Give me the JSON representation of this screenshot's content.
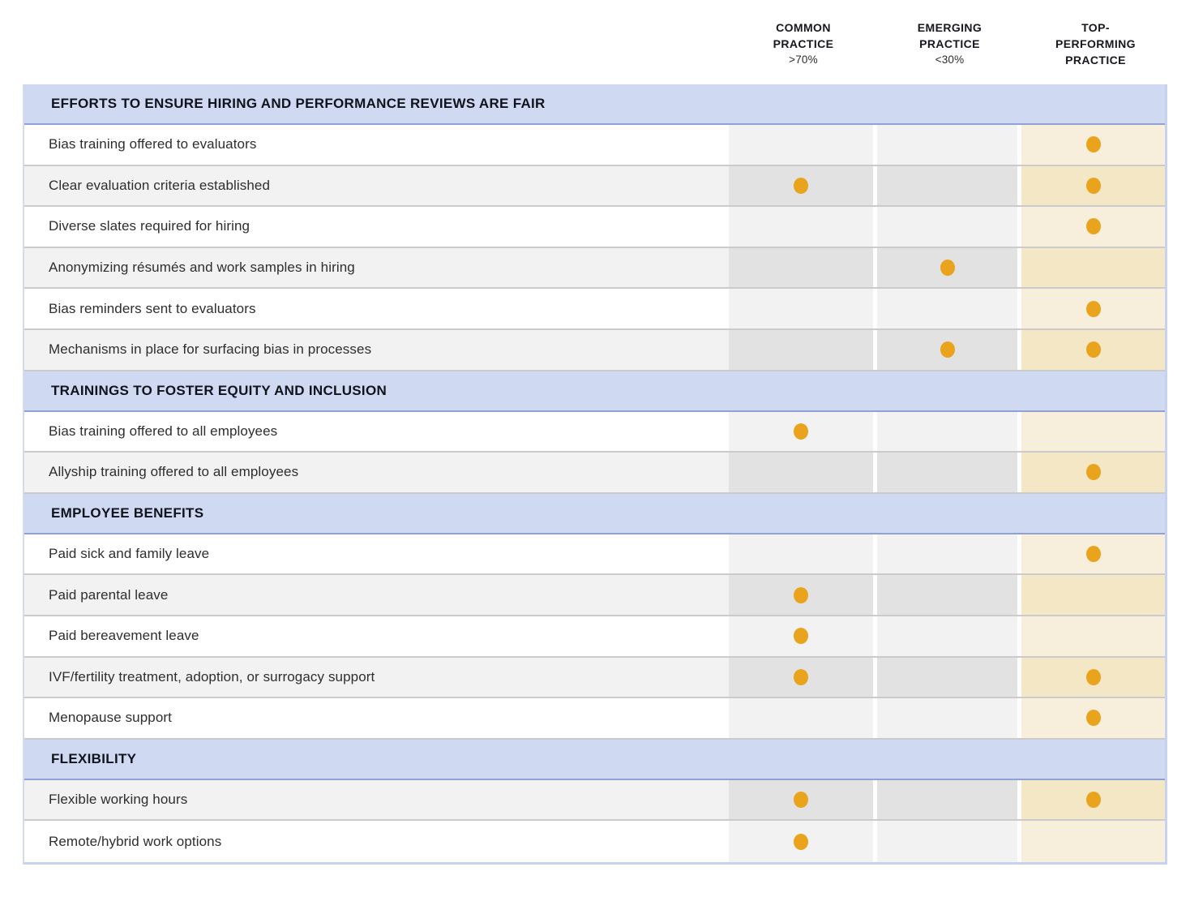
{
  "colors": {
    "section_header_bg": "#cfd9f2",
    "section_header_border": "#90a1d3",
    "row_separator": "#cbcbcb",
    "stripe_light": "#ffffff",
    "stripe_dark": "#f2f2f2",
    "practice_col_light": "#f2f2f2",
    "practice_col_dark": "#e2e2e2",
    "top_col_light": "#f7efdb",
    "top_col_dark": "#f3e7c6",
    "dot": "#e9a31d",
    "table_edge": "#c7d2ee"
  },
  "chart_data": {
    "type": "table",
    "legend_position": "top",
    "columns": [
      {
        "line1": "COMMON",
        "line2": "PRACTICE",
        "line3": "",
        "sub": ">70%"
      },
      {
        "line1": "EMERGING",
        "line2": "PRACTICE",
        "line3": "",
        "sub": "<30%"
      },
      {
        "line1": "TOP-",
        "line2": "PERFORMING",
        "line3": "PRACTICE",
        "sub": ""
      }
    ],
    "sections": [
      {
        "title": "EFFORTS TO ENSURE HIRING AND PERFORMANCE REVIEWS ARE FAIR",
        "rows": [
          {
            "label": "Bias training offered to evaluators",
            "common": false,
            "emerging": false,
            "top": true
          },
          {
            "label": "Clear evaluation criteria established",
            "common": true,
            "emerging": false,
            "top": true
          },
          {
            "label": "Diverse slates required for hiring",
            "common": false,
            "emerging": false,
            "top": true
          },
          {
            "label": "Anonymizing résumés and work samples in hiring",
            "common": false,
            "emerging": true,
            "top": false
          },
          {
            "label": "Bias reminders sent to evaluators",
            "common": false,
            "emerging": false,
            "top": true
          },
          {
            "label": "Mechanisms in place for surfacing bias in processes",
            "common": false,
            "emerging": true,
            "top": true
          }
        ]
      },
      {
        "title": "TRAININGS TO FOSTER EQUITY AND INCLUSION",
        "rows": [
          {
            "label": "Bias training offered to all employees",
            "common": true,
            "emerging": false,
            "top": false
          },
          {
            "label": "Allyship training offered to all employees",
            "common": false,
            "emerging": false,
            "top": true
          }
        ]
      },
      {
        "title": "EMPLOYEE BENEFITS",
        "rows": [
          {
            "label": "Paid sick and family leave",
            "common": false,
            "emerging": false,
            "top": true
          },
          {
            "label": "Paid parental leave",
            "common": true,
            "emerging": false,
            "top": false
          },
          {
            "label": "Paid bereavement leave",
            "common": true,
            "emerging": false,
            "top": false
          },
          {
            "label": "IVF/fertility treatment, adoption, or surrogacy support",
            "common": true,
            "emerging": false,
            "top": true
          },
          {
            "label": "Menopause support",
            "common": false,
            "emerging": false,
            "top": true
          }
        ]
      },
      {
        "title": "FLEXIBILITY",
        "rows": [
          {
            "label": "Flexible working hours",
            "common": true,
            "emerging": false,
            "top": true
          },
          {
            "label": "Remote/hybrid work options",
            "common": true,
            "emerging": false,
            "top": false
          }
        ]
      }
    ]
  }
}
